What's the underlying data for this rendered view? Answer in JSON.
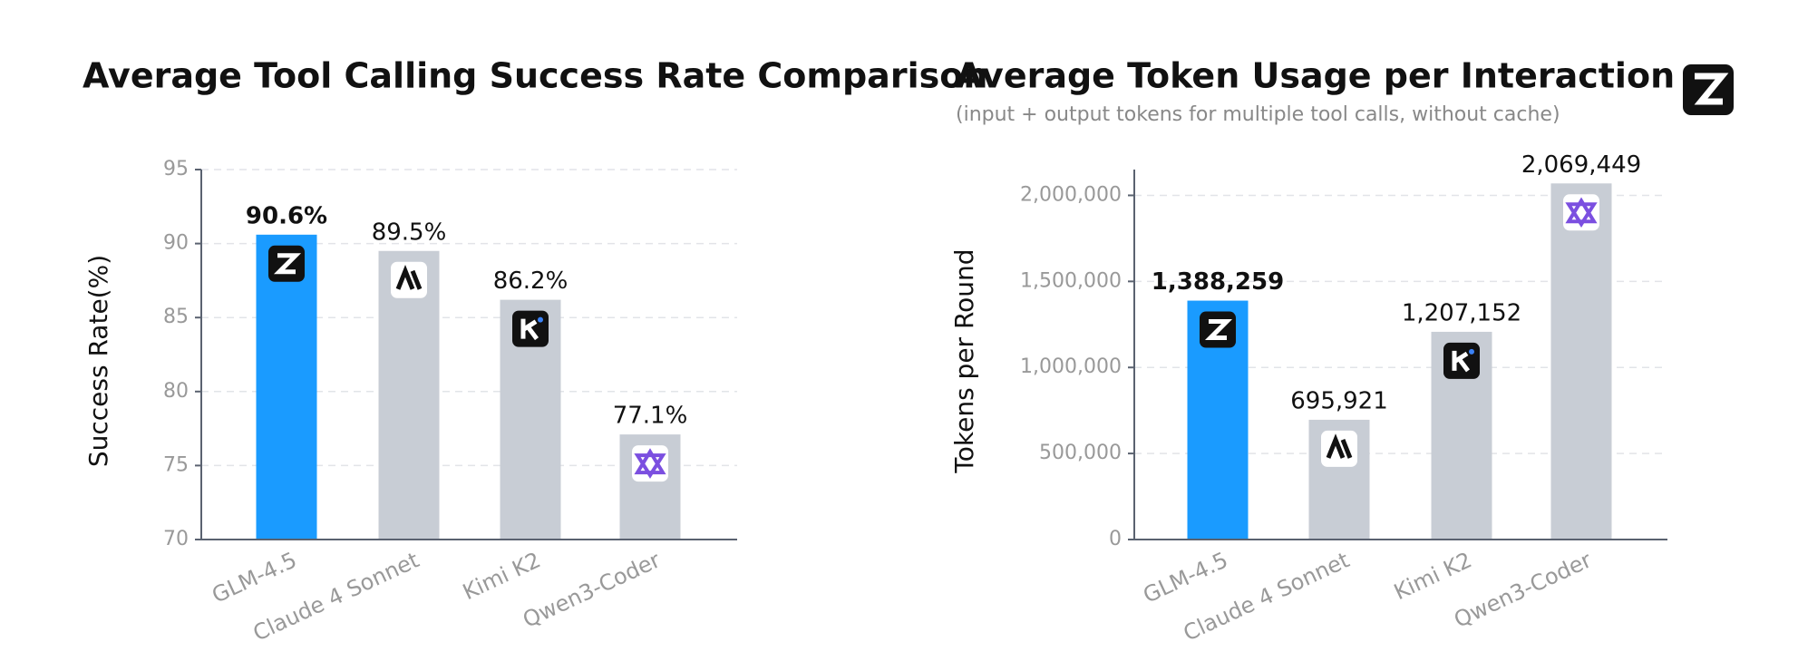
{
  "chart_data": [
    {
      "type": "bar",
      "title": "Average Tool Calling Success Rate Comparison",
      "y_label": "Success Rate(%)",
      "categories": [
        "GLM-4.5",
        "Claude 4 Sonnet",
        "Kimi K2",
        "Qwen3-Coder"
      ],
      "values": [
        90.6,
        89.5,
        86.2,
        77.1
      ],
      "value_labels": [
        "90.6%",
        "89.5%",
        "86.2%",
        "77.1%"
      ],
      "colors": [
        "#1a9bff",
        "#c8cdd5",
        "#c8cdd5",
        "#c8cdd5"
      ],
      "ylim": [
        70,
        95
      ],
      "yticks": [
        70,
        75,
        80,
        85,
        90,
        95
      ],
      "grid": true
    },
    {
      "type": "bar",
      "title": "Average Token Usage per Interaction",
      "subtitle": "(input + output tokens for multiple tool calls, without cache)",
      "y_label": "Tokens per Round",
      "categories": [
        "GLM-4.5",
        "Claude 4 Sonnet",
        "Kimi K2",
        "Qwen3-Coder"
      ],
      "values": [
        1388259,
        695921,
        1207152,
        2069449
      ],
      "value_labels": [
        "1,388,259",
        "695,921",
        "1,207,152",
        "2,069,449"
      ],
      "colors": [
        "#1a9bff",
        "#c8cdd5",
        "#c8cdd5",
        "#c8cdd5"
      ],
      "ylim": [
        0,
        2150000
      ],
      "yticks": [
        0,
        {
          "value": 500000,
          "label": "500,000"
        },
        {
          "value": 1000000,
          "label": "1,000,000"
        },
        {
          "value": 1500000,
          "label": "1,500,000"
        },
        {
          "value": 2000000,
          "label": "2,000,000"
        }
      ],
      "grid": true
    }
  ]
}
